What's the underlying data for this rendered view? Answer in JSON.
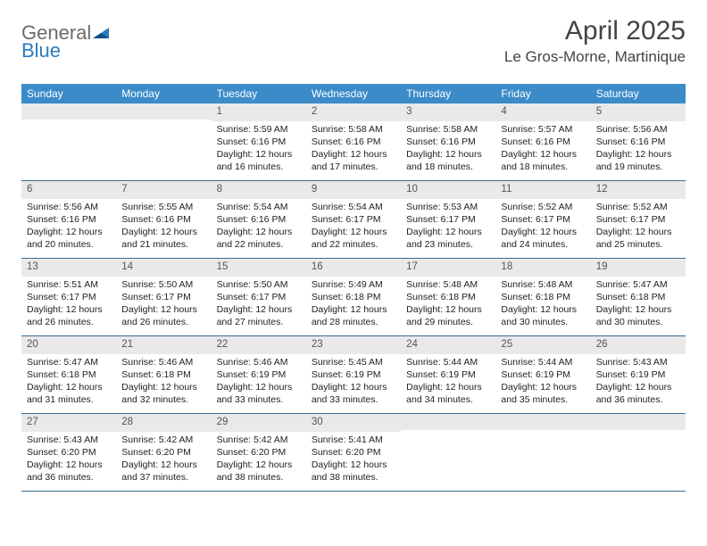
{
  "logo": {
    "text1": "General",
    "text2": "Blue"
  },
  "title": "April 2025",
  "location": "Le Gros-Morne, Martinique",
  "colors": {
    "header_bg": "#3b8bc9",
    "header_text": "#ffffff",
    "daynum_bg": "#e9e9e9",
    "week_divider": "#3b6d94",
    "logo_gray": "#6b6b6b",
    "logo_blue": "#2a7ac0"
  },
  "day_labels": [
    "Sunday",
    "Monday",
    "Tuesday",
    "Wednesday",
    "Thursday",
    "Friday",
    "Saturday"
  ],
  "weeks": [
    [
      {
        "day": "",
        "lines": [
          "",
          "",
          "",
          ""
        ]
      },
      {
        "day": "",
        "lines": [
          "",
          "",
          "",
          ""
        ]
      },
      {
        "day": "1",
        "lines": [
          "Sunrise: 5:59 AM",
          "Sunset: 6:16 PM",
          "Daylight: 12 hours",
          "and 16 minutes."
        ]
      },
      {
        "day": "2",
        "lines": [
          "Sunrise: 5:58 AM",
          "Sunset: 6:16 PM",
          "Daylight: 12 hours",
          "and 17 minutes."
        ]
      },
      {
        "day": "3",
        "lines": [
          "Sunrise: 5:58 AM",
          "Sunset: 6:16 PM",
          "Daylight: 12 hours",
          "and 18 minutes."
        ]
      },
      {
        "day": "4",
        "lines": [
          "Sunrise: 5:57 AM",
          "Sunset: 6:16 PM",
          "Daylight: 12 hours",
          "and 18 minutes."
        ]
      },
      {
        "day": "5",
        "lines": [
          "Sunrise: 5:56 AM",
          "Sunset: 6:16 PM",
          "Daylight: 12 hours",
          "and 19 minutes."
        ]
      }
    ],
    [
      {
        "day": "6",
        "lines": [
          "Sunrise: 5:56 AM",
          "Sunset: 6:16 PM",
          "Daylight: 12 hours",
          "and 20 minutes."
        ]
      },
      {
        "day": "7",
        "lines": [
          "Sunrise: 5:55 AM",
          "Sunset: 6:16 PM",
          "Daylight: 12 hours",
          "and 21 minutes."
        ]
      },
      {
        "day": "8",
        "lines": [
          "Sunrise: 5:54 AM",
          "Sunset: 6:16 PM",
          "Daylight: 12 hours",
          "and 22 minutes."
        ]
      },
      {
        "day": "9",
        "lines": [
          "Sunrise: 5:54 AM",
          "Sunset: 6:17 PM",
          "Daylight: 12 hours",
          "and 22 minutes."
        ]
      },
      {
        "day": "10",
        "lines": [
          "Sunrise: 5:53 AM",
          "Sunset: 6:17 PM",
          "Daylight: 12 hours",
          "and 23 minutes."
        ]
      },
      {
        "day": "11",
        "lines": [
          "Sunrise: 5:52 AM",
          "Sunset: 6:17 PM",
          "Daylight: 12 hours",
          "and 24 minutes."
        ]
      },
      {
        "day": "12",
        "lines": [
          "Sunrise: 5:52 AM",
          "Sunset: 6:17 PM",
          "Daylight: 12 hours",
          "and 25 minutes."
        ]
      }
    ],
    [
      {
        "day": "13",
        "lines": [
          "Sunrise: 5:51 AM",
          "Sunset: 6:17 PM",
          "Daylight: 12 hours",
          "and 26 minutes."
        ]
      },
      {
        "day": "14",
        "lines": [
          "Sunrise: 5:50 AM",
          "Sunset: 6:17 PM",
          "Daylight: 12 hours",
          "and 26 minutes."
        ]
      },
      {
        "day": "15",
        "lines": [
          "Sunrise: 5:50 AM",
          "Sunset: 6:17 PM",
          "Daylight: 12 hours",
          "and 27 minutes."
        ]
      },
      {
        "day": "16",
        "lines": [
          "Sunrise: 5:49 AM",
          "Sunset: 6:18 PM",
          "Daylight: 12 hours",
          "and 28 minutes."
        ]
      },
      {
        "day": "17",
        "lines": [
          "Sunrise: 5:48 AM",
          "Sunset: 6:18 PM",
          "Daylight: 12 hours",
          "and 29 minutes."
        ]
      },
      {
        "day": "18",
        "lines": [
          "Sunrise: 5:48 AM",
          "Sunset: 6:18 PM",
          "Daylight: 12 hours",
          "and 30 minutes."
        ]
      },
      {
        "day": "19",
        "lines": [
          "Sunrise: 5:47 AM",
          "Sunset: 6:18 PM",
          "Daylight: 12 hours",
          "and 30 minutes."
        ]
      }
    ],
    [
      {
        "day": "20",
        "lines": [
          "Sunrise: 5:47 AM",
          "Sunset: 6:18 PM",
          "Daylight: 12 hours",
          "and 31 minutes."
        ]
      },
      {
        "day": "21",
        "lines": [
          "Sunrise: 5:46 AM",
          "Sunset: 6:18 PM",
          "Daylight: 12 hours",
          "and 32 minutes."
        ]
      },
      {
        "day": "22",
        "lines": [
          "Sunrise: 5:46 AM",
          "Sunset: 6:19 PM",
          "Daylight: 12 hours",
          "and 33 minutes."
        ]
      },
      {
        "day": "23",
        "lines": [
          "Sunrise: 5:45 AM",
          "Sunset: 6:19 PM",
          "Daylight: 12 hours",
          "and 33 minutes."
        ]
      },
      {
        "day": "24",
        "lines": [
          "Sunrise: 5:44 AM",
          "Sunset: 6:19 PM",
          "Daylight: 12 hours",
          "and 34 minutes."
        ]
      },
      {
        "day": "25",
        "lines": [
          "Sunrise: 5:44 AM",
          "Sunset: 6:19 PM",
          "Daylight: 12 hours",
          "and 35 minutes."
        ]
      },
      {
        "day": "26",
        "lines": [
          "Sunrise: 5:43 AM",
          "Sunset: 6:19 PM",
          "Daylight: 12 hours",
          "and 36 minutes."
        ]
      }
    ],
    [
      {
        "day": "27",
        "lines": [
          "Sunrise: 5:43 AM",
          "Sunset: 6:20 PM",
          "Daylight: 12 hours",
          "and 36 minutes."
        ]
      },
      {
        "day": "28",
        "lines": [
          "Sunrise: 5:42 AM",
          "Sunset: 6:20 PM",
          "Daylight: 12 hours",
          "and 37 minutes."
        ]
      },
      {
        "day": "29",
        "lines": [
          "Sunrise: 5:42 AM",
          "Sunset: 6:20 PM",
          "Daylight: 12 hours",
          "and 38 minutes."
        ]
      },
      {
        "day": "30",
        "lines": [
          "Sunrise: 5:41 AM",
          "Sunset: 6:20 PM",
          "Daylight: 12 hours",
          "and 38 minutes."
        ]
      },
      {
        "day": "",
        "lines": [
          "",
          "",
          "",
          ""
        ]
      },
      {
        "day": "",
        "lines": [
          "",
          "",
          "",
          ""
        ]
      },
      {
        "day": "",
        "lines": [
          "",
          "",
          "",
          ""
        ]
      }
    ]
  ]
}
